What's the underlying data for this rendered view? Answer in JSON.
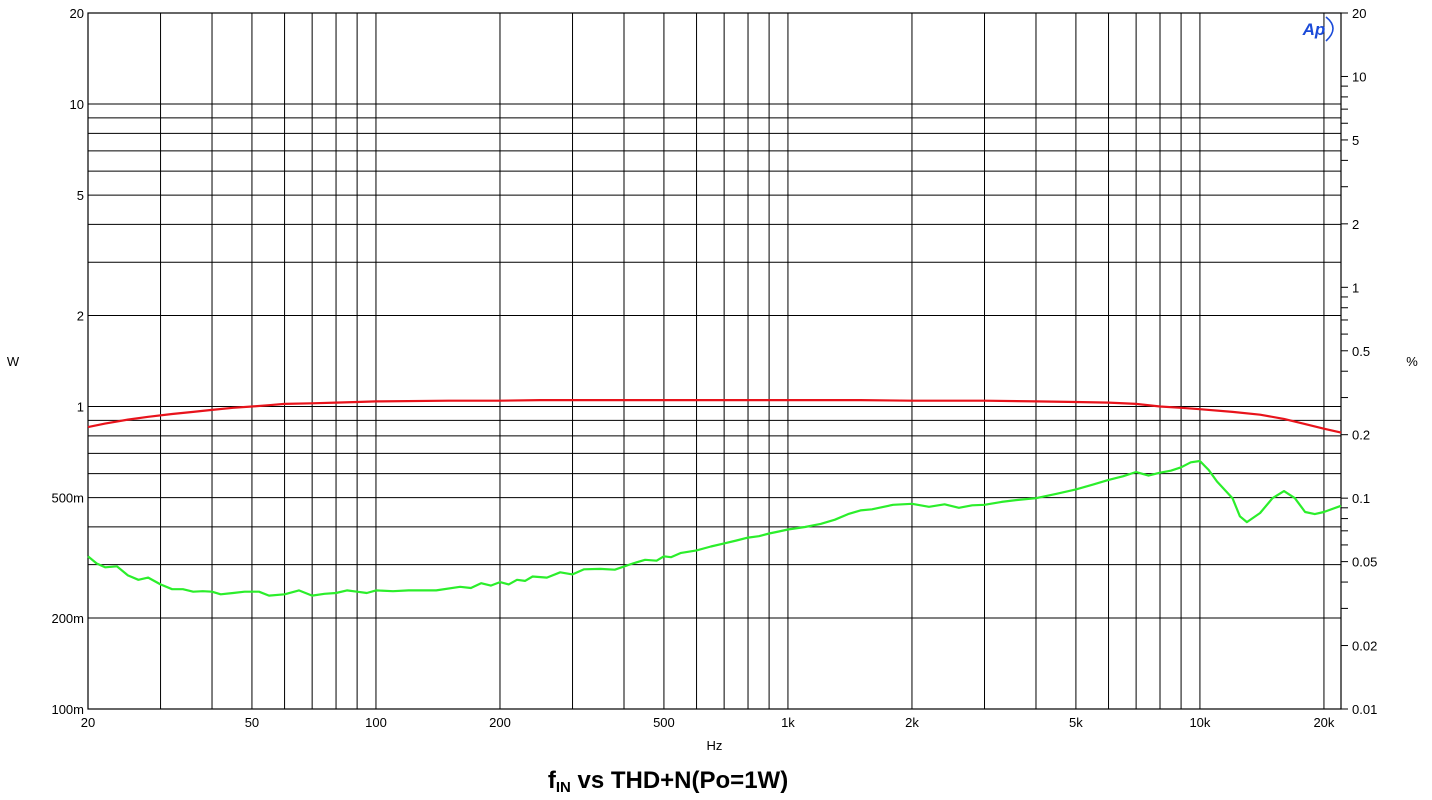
{
  "chart_data": {
    "type": "line",
    "title": {
      "prefix": "f",
      "subscript": "IN",
      "rest": " vs THD+N(Po=1W)"
    },
    "xlabel": "Hz",
    "ylabel_left": "W",
    "ylabel_right": "%",
    "x_scale": "log",
    "y_left_scale": "log",
    "y_right_scale": "log",
    "xlim": [
      20,
      22000
    ],
    "ylim_left": [
      0.1,
      20
    ],
    "ylim_right": [
      0.01,
      20
    ],
    "x_ticks": [
      {
        "value": 20,
        "label": "20"
      },
      {
        "value": 50,
        "label": "50"
      },
      {
        "value": 100,
        "label": "100"
      },
      {
        "value": 200,
        "label": "200"
      },
      {
        "value": 500,
        "label": "500"
      },
      {
        "value": 1000,
        "label": "1k"
      },
      {
        "value": 2000,
        "label": "2k"
      },
      {
        "value": 5000,
        "label": "5k"
      },
      {
        "value": 10000,
        "label": "10k"
      },
      {
        "value": 20000,
        "label": "20k"
      }
    ],
    "y_left_ticks": [
      {
        "value": 20,
        "label": "20"
      },
      {
        "value": 10,
        "label": "10"
      },
      {
        "value": 5,
        "label": "5"
      },
      {
        "value": 2,
        "label": "2"
      },
      {
        "value": 1,
        "label": "1"
      },
      {
        "value": 0.5,
        "label": "500m"
      },
      {
        "value": 0.2,
        "label": "200m"
      },
      {
        "value": 0.1,
        "label": "100m"
      }
    ],
    "y_right_ticks": [
      {
        "value": 20,
        "label": "20"
      },
      {
        "value": 10,
        "label": "10"
      },
      {
        "value": 5,
        "label": "5"
      },
      {
        "value": 2,
        "label": "2"
      },
      {
        "value": 1,
        "label": "1"
      },
      {
        "value": 0.5,
        "label": "0.5"
      },
      {
        "value": 0.2,
        "label": "0.2"
      },
      {
        "value": 0.1,
        "label": "0.1"
      },
      {
        "value": 0.05,
        "label": "0.05"
      },
      {
        "value": 0.02,
        "label": "0.02"
      },
      {
        "value": 0.01,
        "label": "0.01"
      }
    ],
    "grid": true,
    "logo": "Ap",
    "series": [
      {
        "axis": "left",
        "color": "#e8131b",
        "points": [
          [
            20,
            0.855
          ],
          [
            22,
            0.878
          ],
          [
            25,
            0.905
          ],
          [
            28,
            0.925
          ],
          [
            32,
            0.945
          ],
          [
            36,
            0.96
          ],
          [
            40,
            0.975
          ],
          [
            45,
            0.99
          ],
          [
            50,
            1.0
          ],
          [
            55,
            1.01
          ],
          [
            60,
            1.02
          ],
          [
            70,
            1.025
          ],
          [
            80,
            1.03
          ],
          [
            90,
            1.035
          ],
          [
            100,
            1.04
          ],
          [
            150,
            1.045
          ],
          [
            200,
            1.045
          ],
          [
            250,
            1.05
          ],
          [
            500,
            1.05
          ],
          [
            1000,
            1.05
          ],
          [
            1500,
            1.05
          ],
          [
            2000,
            1.045
          ],
          [
            3000,
            1.045
          ],
          [
            4000,
            1.04
          ],
          [
            5000,
            1.035
          ],
          [
            6000,
            1.03
          ],
          [
            7000,
            1.02
          ],
          [
            8000,
            1.0
          ],
          [
            9000,
            0.99
          ],
          [
            10000,
            0.98
          ],
          [
            12000,
            0.96
          ],
          [
            14000,
            0.94
          ],
          [
            16000,
            0.91
          ],
          [
            18000,
            0.875
          ],
          [
            20000,
            0.845
          ],
          [
            22000,
            0.82
          ]
        ]
      },
      {
        "axis": "right",
        "color": "#2bee2b",
        "points": [
          [
            20,
            0.053
          ],
          [
            21,
            0.049
          ],
          [
            22,
            0.047
          ],
          [
            23.5,
            0.0475
          ],
          [
            25,
            0.043
          ],
          [
            26.5,
            0.041
          ],
          [
            28,
            0.042
          ],
          [
            30,
            0.039
          ],
          [
            32,
            0.037
          ],
          [
            34,
            0.037
          ],
          [
            36,
            0.036
          ],
          [
            38,
            0.0362
          ],
          [
            40,
            0.036
          ],
          [
            42,
            0.035
          ],
          [
            45,
            0.0355
          ],
          [
            48,
            0.036
          ],
          [
            52,
            0.036
          ],
          [
            55,
            0.0345
          ],
          [
            60,
            0.035
          ],
          [
            65,
            0.0365
          ],
          [
            70,
            0.0345
          ],
          [
            75,
            0.0352
          ],
          [
            80,
            0.0355
          ],
          [
            85,
            0.0365
          ],
          [
            90,
            0.036
          ],
          [
            95,
            0.0355
          ],
          [
            100,
            0.0365
          ],
          [
            110,
            0.0362
          ],
          [
            120,
            0.0365
          ],
          [
            140,
            0.0365
          ],
          [
            160,
            0.038
          ],
          [
            170,
            0.0375
          ],
          [
            180,
            0.0395
          ],
          [
            190,
            0.0385
          ],
          [
            200,
            0.04
          ],
          [
            210,
            0.039
          ],
          [
            220,
            0.041
          ],
          [
            230,
            0.0405
          ],
          [
            240,
            0.0425
          ],
          [
            260,
            0.042
          ],
          [
            280,
            0.0445
          ],
          [
            300,
            0.0435
          ],
          [
            320,
            0.046
          ],
          [
            350,
            0.0462
          ],
          [
            380,
            0.0458
          ],
          [
            420,
            0.049
          ],
          [
            450,
            0.051
          ],
          [
            480,
            0.0505
          ],
          [
            500,
            0.053
          ],
          [
            520,
            0.0525
          ],
          [
            550,
            0.055
          ],
          [
            600,
            0.0565
          ],
          [
            650,
            0.059
          ],
          [
            700,
            0.061
          ],
          [
            750,
            0.063
          ],
          [
            800,
            0.065
          ],
          [
            850,
            0.066
          ],
          [
            900,
            0.068
          ],
          [
            950,
            0.0695
          ],
          [
            1000,
            0.071
          ],
          [
            1100,
            0.073
          ],
          [
            1200,
            0.0755
          ],
          [
            1300,
            0.079
          ],
          [
            1400,
            0.084
          ],
          [
            1500,
            0.0875
          ],
          [
            1600,
            0.0885
          ],
          [
            1800,
            0.093
          ],
          [
            2000,
            0.094
          ],
          [
            2200,
            0.091
          ],
          [
            2400,
            0.0935
          ],
          [
            2600,
            0.09
          ],
          [
            2800,
            0.0925
          ],
          [
            3000,
            0.093
          ],
          [
            3300,
            0.096
          ],
          [
            3600,
            0.098
          ],
          [
            4000,
            0.1
          ],
          [
            4500,
            0.105
          ],
          [
            5000,
            0.11
          ],
          [
            5500,
            0.116
          ],
          [
            6000,
            0.122
          ],
          [
            6500,
            0.127
          ],
          [
            7000,
            0.133
          ],
          [
            7500,
            0.128
          ],
          [
            8000,
            0.132
          ],
          [
            8500,
            0.135
          ],
          [
            9000,
            0.14
          ],
          [
            9500,
            0.148
          ],
          [
            10000,
            0.15
          ],
          [
            10500,
            0.136
          ],
          [
            11000,
            0.12
          ],
          [
            12000,
            0.1
          ],
          [
            12500,
            0.082
          ],
          [
            13000,
            0.077
          ],
          [
            14000,
            0.085
          ],
          [
            15000,
            0.1
          ],
          [
            16000,
            0.108
          ],
          [
            17000,
            0.1
          ],
          [
            18000,
            0.086
          ],
          [
            19000,
            0.084
          ],
          [
            20000,
            0.086
          ],
          [
            22000,
            0.092
          ]
        ]
      }
    ]
  }
}
